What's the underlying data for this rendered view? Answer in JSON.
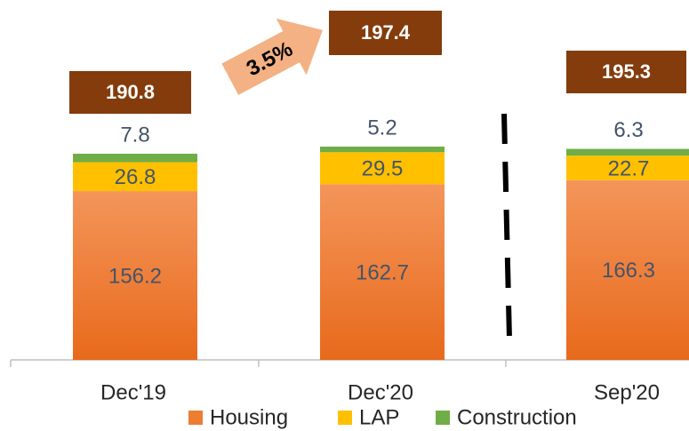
{
  "chart_data": {
    "type": "stacked-bar",
    "categories": [
      "Dec'19",
      "Dec'20",
      "Sep'20"
    ],
    "series": [
      {
        "name": "Housing",
        "color": "#ed7d31",
        "values": [
          156.2,
          162.7,
          166.3
        ]
      },
      {
        "name": "LAP",
        "color": "#ffc000",
        "values": [
          26.8,
          29.5,
          22.7
        ]
      },
      {
        "name": "Construction",
        "color": "#70ad47",
        "values": [
          7.8,
          5.2,
          6.3
        ]
      }
    ],
    "totals": [
      190.8,
      197.4,
      195.3
    ],
    "annotation": "3.5%",
    "legend": "bottom"
  }
}
